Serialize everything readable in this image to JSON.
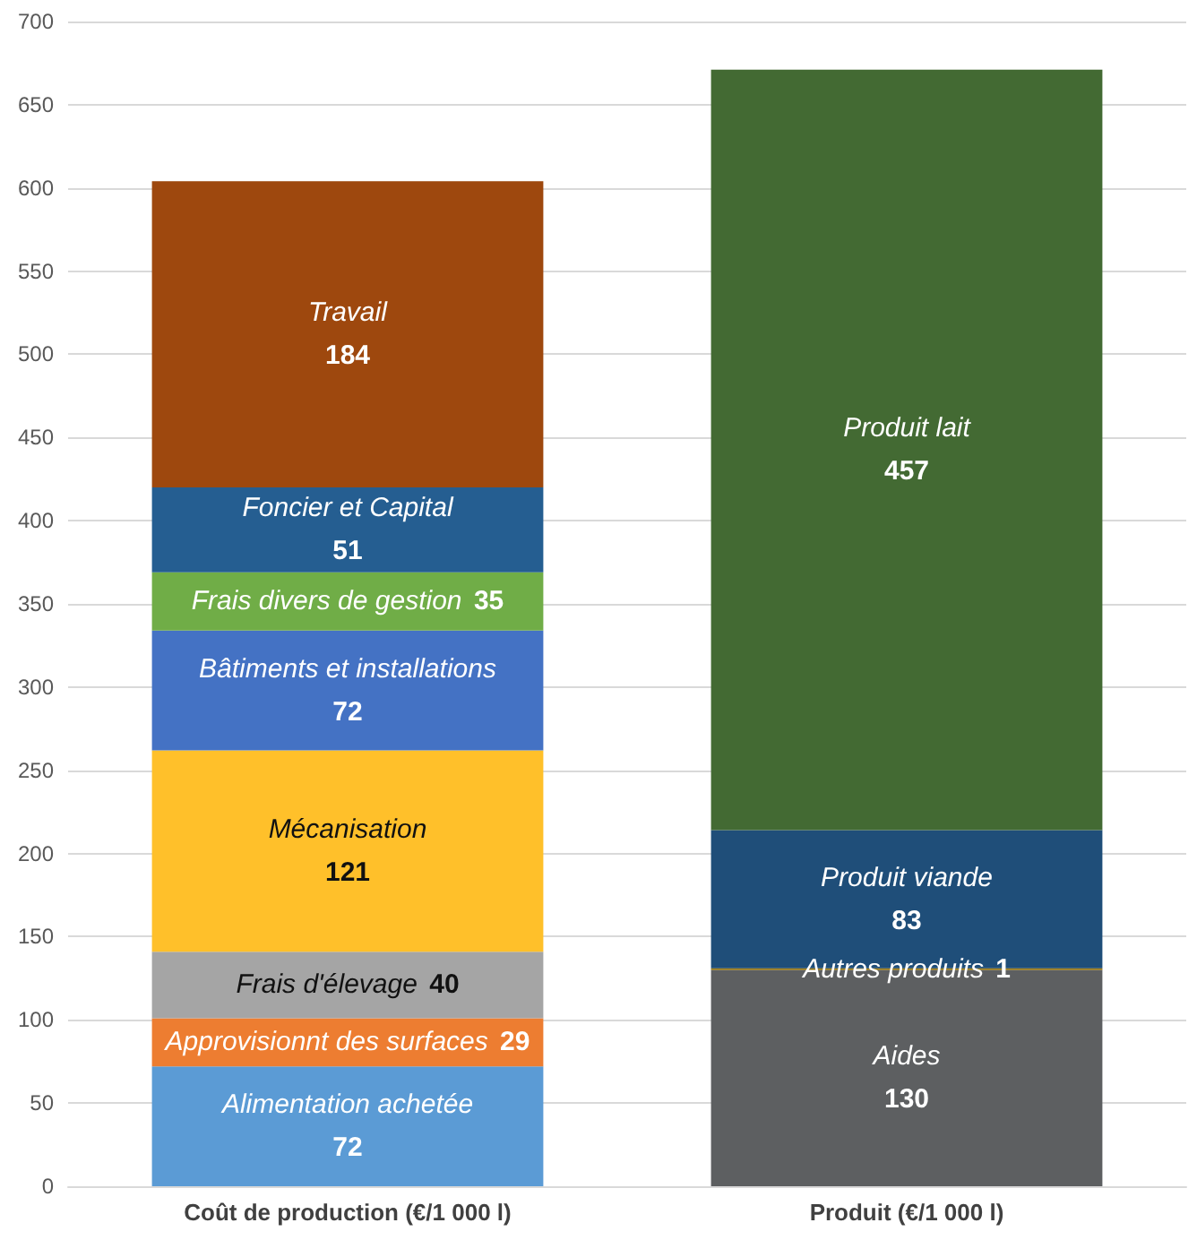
{
  "chart_data": {
    "type": "bar",
    "stacked": true,
    "data_labels": true,
    "grid": "y",
    "legend": false,
    "categories": [
      "Coût de production (€/1 000 l)",
      "Produit (€/1 000 l)"
    ],
    "ylim": [
      0,
      700
    ],
    "yticks": [
      0,
      50,
      100,
      150,
      200,
      250,
      300,
      350,
      400,
      450,
      500,
      550,
      600,
      650,
      700
    ],
    "series": [
      {
        "name": "Alimentation achetée",
        "color": "#5b9bd5",
        "values": [
          72,
          null
        ]
      },
      {
        "name": "Approvisionnt des surfaces",
        "color": "#ed7d31",
        "values": [
          29,
          null
        ]
      },
      {
        "name": "Frais d'élevage",
        "color": "#a5a5a5",
        "values": [
          40,
          null
        ]
      },
      {
        "name": "Mécanisation",
        "color": "#ffc02a",
        "values": [
          121,
          null
        ]
      },
      {
        "name": "Bâtiments et installations",
        "color": "#4472c4",
        "values": [
          72,
          null
        ]
      },
      {
        "name": "Frais divers de gestion",
        "color": "#70ad47",
        "values": [
          35,
          null
        ]
      },
      {
        "name": "Foncier et Capital",
        "color": "#255e91",
        "values": [
          51,
          null
        ]
      },
      {
        "name": "Travail",
        "color": "#9e480e",
        "values": [
          184,
          null
        ]
      },
      {
        "name": "Aides",
        "color": "#5d5f61",
        "values": [
          null,
          130
        ]
      },
      {
        "name": "Autres produits",
        "color": "#997300",
        "values": [
          null,
          1
        ]
      },
      {
        "name": "Produit viande",
        "color": "#1f4e79",
        "values": [
          null,
          83
        ]
      },
      {
        "name": "Produit lait",
        "color": "#436a33",
        "values": [
          null,
          457
        ]
      }
    ]
  }
}
